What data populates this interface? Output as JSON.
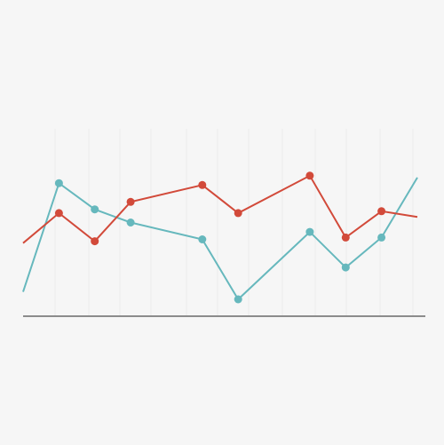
{
  "chart_data": {
    "type": "line",
    "title": "",
    "xlabel": "",
    "ylabel": "",
    "grid": true,
    "legend": "none",
    "x": [
      0,
      1,
      2,
      3,
      4,
      5,
      6,
      7,
      8,
      9,
      10,
      11
    ],
    "xlim": [
      0,
      11
    ],
    "ylim": [
      0,
      100
    ],
    "series": [
      {
        "color": "#66b8bd",
        "values": [
          13,
          71,
          57,
          50,
          null,
          41,
          9,
          null,
          45,
          26,
          42,
          74
        ],
        "markers": [
          false,
          true,
          true,
          true,
          false,
          true,
          true,
          false,
          true,
          true,
          true,
          false
        ]
      },
      {
        "color": "#d24a3a",
        "values": [
          39,
          55,
          40,
          61,
          null,
          70,
          55,
          null,
          75,
          42,
          56,
          53
        ],
        "markers": [
          false,
          true,
          true,
          true,
          false,
          true,
          true,
          false,
          true,
          true,
          true,
          false
        ]
      }
    ]
  }
}
